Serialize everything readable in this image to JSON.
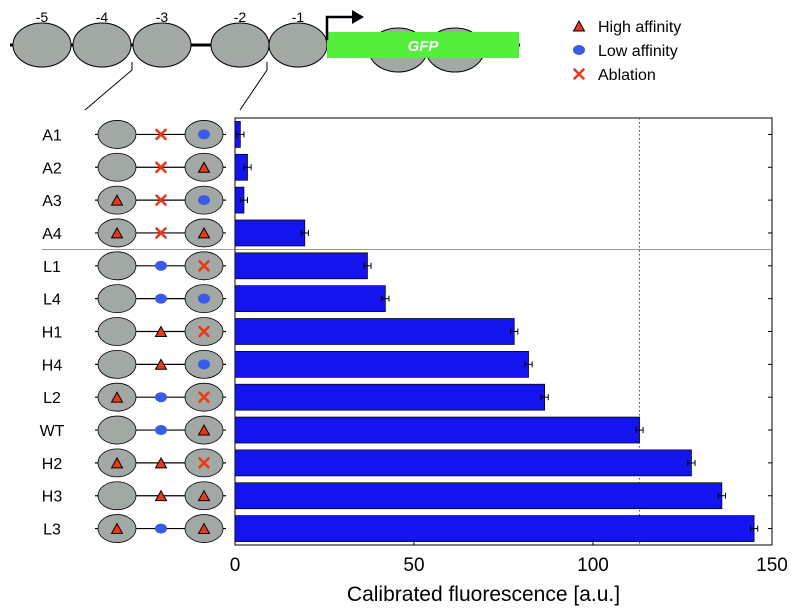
{
  "promoter": {
    "nucleosome_labels": [
      "-5",
      "-4",
      "-3",
      "-2",
      "-1"
    ],
    "gene_label": "GFP",
    "gene_color": "#55ee3c"
  },
  "legend": {
    "items": [
      {
        "symbol": "triangle",
        "label": "High affinity"
      },
      {
        "symbol": "ellipse",
        "label": "Low affinity"
      },
      {
        "symbol": "cross",
        "label": "Ablation"
      }
    ]
  },
  "colors": {
    "bar": "#1414ee",
    "triangle": "#e83a1a",
    "ellipse": "#3a5ae8",
    "cross": "#e83a1a",
    "nucleosome": "#a2a8a4"
  },
  "chart_data": {
    "type": "bar",
    "orientation": "horizontal",
    "categories": [
      "A1",
      "A2",
      "A3",
      "A4",
      "L1",
      "L4",
      "H1",
      "H4",
      "L2",
      "WT",
      "H2",
      "H3",
      "L3"
    ],
    "values": [
      1.5,
      3.5,
      2.5,
      19.5,
      37,
      42,
      78,
      82,
      86.5,
      113,
      127.5,
      136,
      145
    ],
    "errors": [
      1,
      1,
      1,
      1,
      1,
      1,
      1,
      1,
      1,
      1,
      1,
      1,
      1
    ],
    "site_configs": [
      {
        "left": "none",
        "middle": "cross",
        "right": "ellipse"
      },
      {
        "left": "none",
        "middle": "cross",
        "right": "triangle"
      },
      {
        "left": "triangle",
        "middle": "cross",
        "right": "ellipse"
      },
      {
        "left": "triangle",
        "middle": "cross",
        "right": "triangle"
      },
      {
        "left": "none",
        "middle": "ellipse",
        "right": "cross"
      },
      {
        "left": "none",
        "middle": "ellipse",
        "right": "ellipse"
      },
      {
        "left": "none",
        "middle": "triangle",
        "right": "cross"
      },
      {
        "left": "none",
        "middle": "triangle",
        "right": "ellipse"
      },
      {
        "left": "triangle",
        "middle": "ellipse",
        "right": "cross"
      },
      {
        "left": "none",
        "middle": "ellipse",
        "right": "triangle"
      },
      {
        "left": "triangle",
        "middle": "triangle",
        "right": "cross"
      },
      {
        "left": "none",
        "middle": "triangle",
        "right": "triangle"
      },
      {
        "left": "triangle",
        "middle": "ellipse",
        "right": "triangle"
      }
    ],
    "reference_line": 113,
    "group_separator_after": "A4",
    "xlabel": "Calibrated fluorescence [a.u.]",
    "xlim": [
      0,
      150
    ],
    "xticks": [
      0,
      50,
      100,
      150
    ],
    "grid": false
  }
}
